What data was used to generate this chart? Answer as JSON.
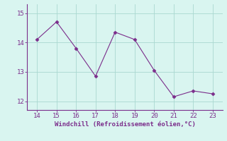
{
  "x": [
    14,
    15,
    16,
    17,
    18,
    19,
    20,
    21,
    22,
    23
  ],
  "y": [
    14.1,
    14.7,
    13.8,
    12.85,
    14.35,
    14.1,
    13.05,
    12.15,
    12.35,
    12.25
  ],
  "line_color": "#7b2d8b",
  "marker": "D",
  "marker_size": 2.5,
  "bg_color": "#d9f5f0",
  "grid_color": "#aad8d0",
  "xlabel": "Windchill (Refroidissement éolien,°C)",
  "xlabel_color": "#7b2d8b",
  "tick_color": "#7b2d8b",
  "axis_color": "#7b2d8b",
  "xlim": [
    13.5,
    23.5
  ],
  "ylim": [
    11.7,
    15.3
  ],
  "yticks": [
    12,
    13,
    14,
    15
  ],
  "xticks": [
    14,
    15,
    16,
    17,
    18,
    19,
    20,
    21,
    22,
    23
  ]
}
